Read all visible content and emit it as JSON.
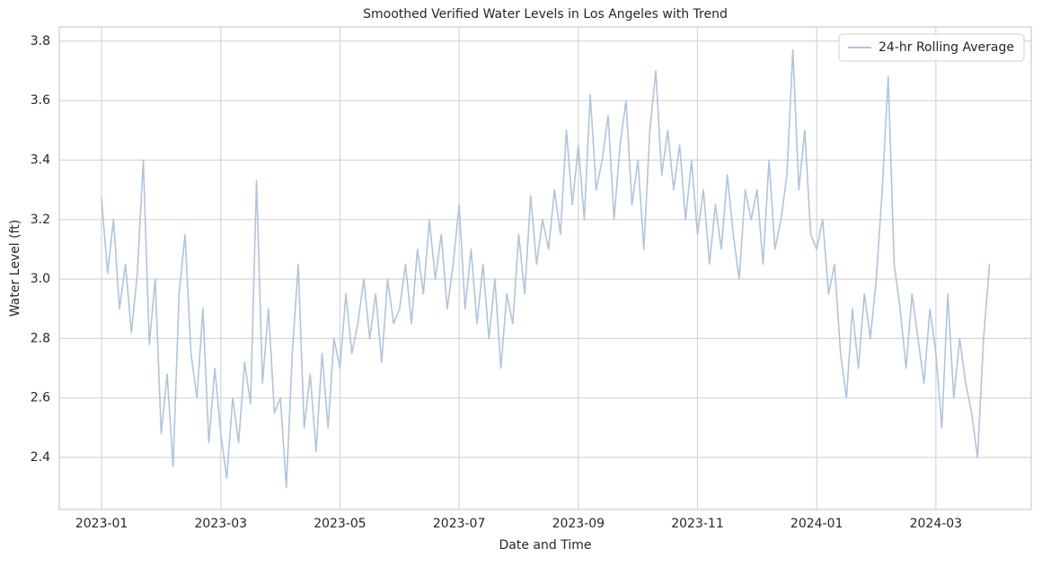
{
  "chart_data": {
    "type": "line",
    "title": "Smoothed Verified Water Levels in Los Angeles with Trend",
    "x_label": "Date and Time",
    "y_label": "Water Level (ft)",
    "x": [
      0,
      0.1,
      0.2,
      0.3,
      0.4,
      0.5,
      0.6,
      0.7,
      0.8,
      0.9,
      1,
      1.1,
      1.2,
      1.3,
      1.4,
      1.5,
      1.6,
      1.7,
      1.8,
      1.9,
      2,
      2.1,
      2.2,
      2.3,
      2.4,
      2.5,
      2.6,
      2.7,
      2.8,
      2.9,
      3,
      3.1,
      3.2,
      3.3,
      3.4,
      3.5,
      3.6,
      3.7,
      3.8,
      3.9,
      4,
      4.1,
      4.2,
      4.3,
      4.4,
      4.5,
      4.6,
      4.7,
      4.8,
      4.9,
      5,
      5.1,
      5.2,
      5.3,
      5.4,
      5.5,
      5.6,
      5.7,
      5.8,
      5.9,
      6,
      6.1,
      6.2,
      6.3,
      6.4,
      6.5,
      6.6,
      6.7,
      6.8,
      6.9,
      7,
      7.1,
      7.2,
      7.3,
      7.4,
      7.5,
      7.6,
      7.7,
      7.8,
      7.9,
      8,
      8.1,
      8.2,
      8.3,
      8.4,
      8.5,
      8.6,
      8.7,
      8.8,
      8.9,
      9,
      9.1,
      9.2,
      9.3,
      9.4,
      9.5,
      9.6,
      9.7,
      9.8,
      9.9,
      10,
      10.1,
      10.2,
      10.3,
      10.4,
      10.5,
      10.6,
      10.7,
      10.8,
      10.9,
      11,
      11.1,
      11.2,
      11.3,
      11.4,
      11.5,
      11.6,
      11.7,
      11.8,
      11.9,
      12,
      12.1,
      12.2,
      12.3,
      12.4,
      12.5,
      12.6,
      12.7,
      12.8,
      12.9,
      13,
      13.1,
      13.2,
      13.3,
      13.4,
      13.5,
      13.6,
      13.7,
      13.8,
      13.9,
      14,
      14.1,
      14.2,
      14.3,
      14.4,
      14.5,
      14.6,
      14.7,
      14.8,
      14.9
    ],
    "series": [
      {
        "name": "24-hr Rolling Average",
        "color": "#b0c4de",
        "values": [
          3.27,
          3.02,
          3.2,
          2.9,
          3.05,
          2.82,
          3.02,
          3.4,
          2.78,
          3.0,
          2.48,
          2.68,
          2.37,
          2.95,
          3.15,
          2.75,
          2.6,
          2.9,
          2.45,
          2.7,
          2.48,
          2.33,
          2.6,
          2.45,
          2.72,
          2.58,
          3.33,
          2.65,
          2.9,
          2.55,
          2.6,
          2.3,
          2.75,
          3.05,
          2.5,
          2.68,
          2.42,
          2.75,
          2.5,
          2.8,
          2.7,
          2.95,
          2.75,
          2.85,
          3.0,
          2.8,
          2.95,
          2.72,
          3.0,
          2.85,
          2.9,
          3.05,
          2.85,
          3.1,
          2.95,
          3.2,
          3.0,
          3.15,
          2.9,
          3.05,
          3.25,
          2.9,
          3.1,
          2.85,
          3.05,
          2.8,
          3.0,
          2.7,
          2.95,
          2.85,
          3.15,
          2.95,
          3.28,
          3.05,
          3.2,
          3.1,
          3.3,
          3.15,
          3.5,
          3.25,
          3.45,
          3.2,
          3.62,
          3.3,
          3.4,
          3.55,
          3.2,
          3.45,
          3.6,
          3.25,
          3.4,
          3.1,
          3.5,
          3.7,
          3.35,
          3.5,
          3.3,
          3.45,
          3.2,
          3.4,
          3.15,
          3.3,
          3.05,
          3.25,
          3.1,
          3.35,
          3.15,
          3.0,
          3.3,
          3.2,
          3.3,
          3.05,
          3.4,
          3.1,
          3.2,
          3.35,
          3.77,
          3.3,
          3.5,
          3.15,
          3.1,
          3.2,
          2.95,
          3.05,
          2.75,
          2.6,
          2.9,
          2.7,
          2.95,
          2.8,
          3.0,
          3.3,
          3.68,
          3.05,
          2.9,
          2.7,
          2.95,
          2.8,
          2.65,
          2.9,
          2.75,
          2.5,
          2.95,
          2.6,
          2.8,
          2.65,
          2.55,
          2.4,
          2.8,
          3.05
        ]
      }
    ],
    "xlim": [
      -0.71,
      15.6
    ],
    "xticks": [
      {
        "value": 0,
        "label": "2023-01"
      },
      {
        "value": 2,
        "label": "2023-03"
      },
      {
        "value": 4,
        "label": "2023-05"
      },
      {
        "value": 6,
        "label": "2023-07"
      },
      {
        "value": 8,
        "label": "2023-09"
      },
      {
        "value": 10,
        "label": "2023-11"
      },
      {
        "value": 12,
        "label": "2024-01"
      },
      {
        "value": 14,
        "label": "2024-03"
      }
    ],
    "ylim": [
      2.225,
      3.848
    ],
    "yticks": [
      {
        "value": 2.4,
        "label": "2.4"
      },
      {
        "value": 2.6,
        "label": "2.6"
      },
      {
        "value": 2.8,
        "label": "2.8"
      },
      {
        "value": 3.0,
        "label": "3.0"
      },
      {
        "value": 3.2,
        "label": "3.2"
      },
      {
        "value": 3.4,
        "label": "3.4"
      },
      {
        "value": 3.6,
        "label": "3.6"
      },
      {
        "value": 3.8,
        "label": "3.8"
      }
    ],
    "grid": true,
    "legend_position": "upper-right"
  }
}
